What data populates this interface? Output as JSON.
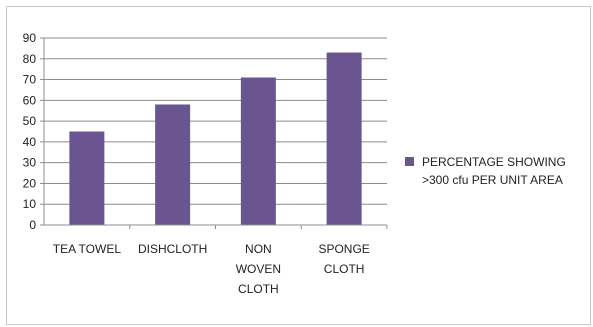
{
  "chart_data": {
    "type": "bar",
    "categories": [
      [
        "TEA TOWEL"
      ],
      [
        "DISHCLOTH"
      ],
      [
        "NON",
        "WOVEN",
        "CLOTH"
      ],
      [
        "SPONGE",
        "CLOTH"
      ]
    ],
    "series": [
      {
        "name": [
          "PERCENTAGE SHOWING",
          ">300 cfu PER UNIT  AREA"
        ],
        "values": [
          45,
          58,
          71,
          83
        ],
        "color": "#6b5591"
      }
    ],
    "ylim": [
      0,
      90
    ],
    "yticks": [
      "0",
      "10",
      "20",
      "30",
      "40",
      "50",
      "60",
      "70",
      "80",
      "90"
    ],
    "grid": true,
    "legend": "right"
  }
}
